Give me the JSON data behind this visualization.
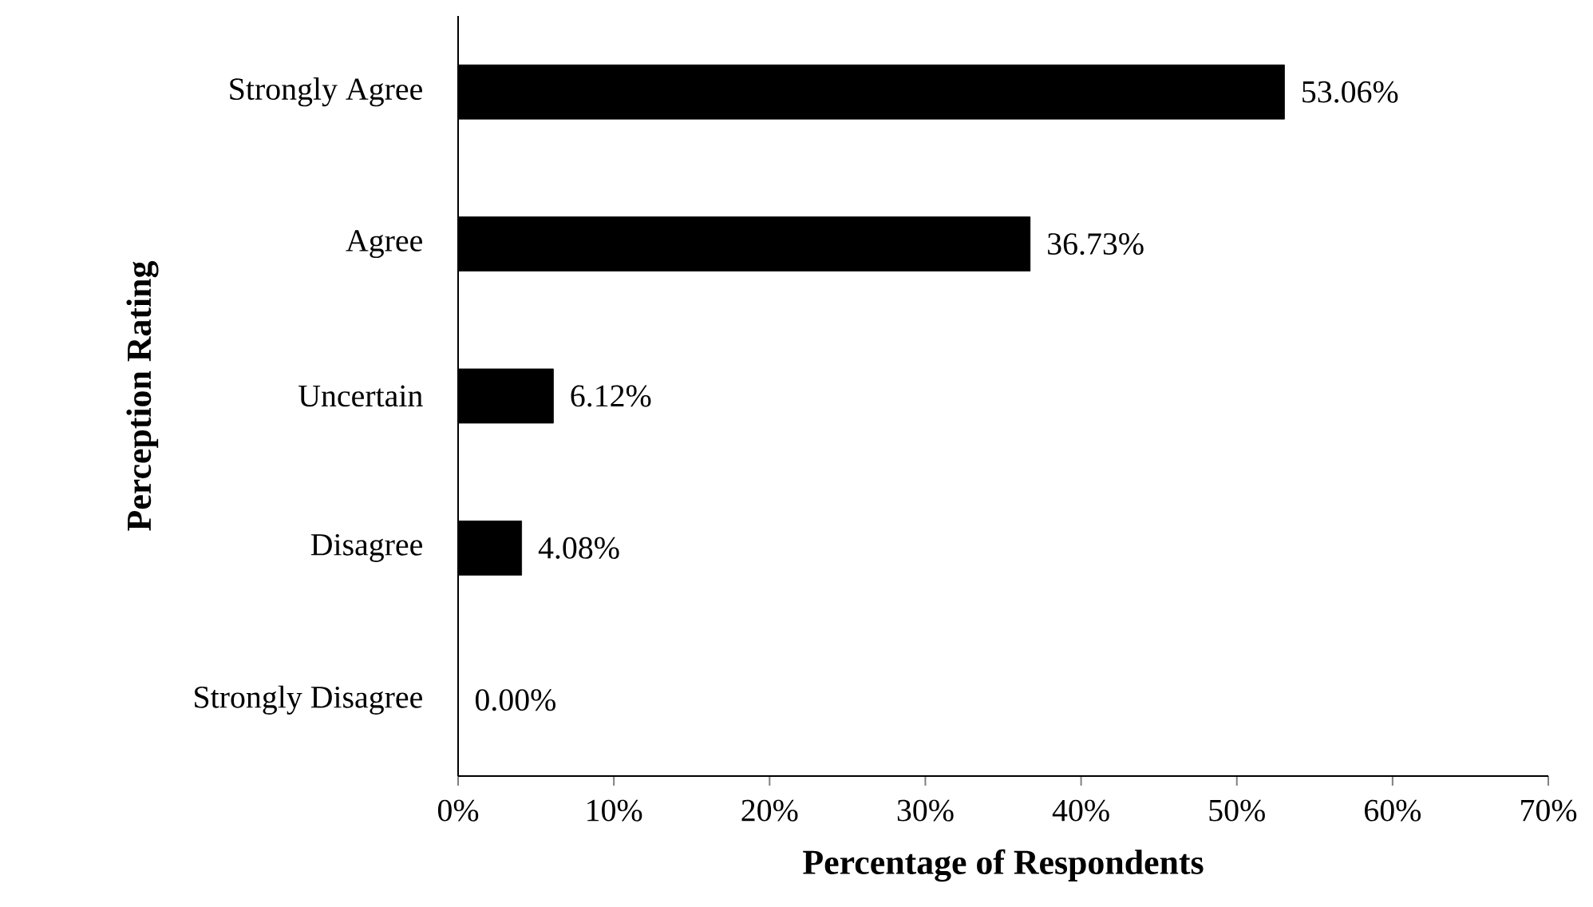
{
  "chart_data": {
    "type": "bar",
    "orientation": "horizontal",
    "xlabel": "Percentage of Respondents",
    "ylabel": "Perception Rating",
    "categories": [
      "Strongly Agree",
      "Agree",
      "Uncertain",
      "Disagree",
      "Strongly Disagree"
    ],
    "values": [
      53.06,
      36.73,
      6.12,
      4.08,
      0.0
    ],
    "value_labels": [
      "53.06%",
      "36.73%",
      "6.12%",
      "4.08%",
      "0.00%"
    ],
    "color": "#000000",
    "xlim": [
      0,
      70
    ],
    "xticks": [
      {
        "value": 0,
        "label": "0%"
      },
      {
        "value": 10,
        "label": "10%"
      },
      {
        "value": 20,
        "label": "20%"
      },
      {
        "value": 30,
        "label": "30%"
      },
      {
        "value": 40,
        "label": "40%"
      },
      {
        "value": 50,
        "label": "50%"
      },
      {
        "value": 60,
        "label": "60%"
      },
      {
        "value": 70,
        "label": "70%"
      }
    ]
  }
}
